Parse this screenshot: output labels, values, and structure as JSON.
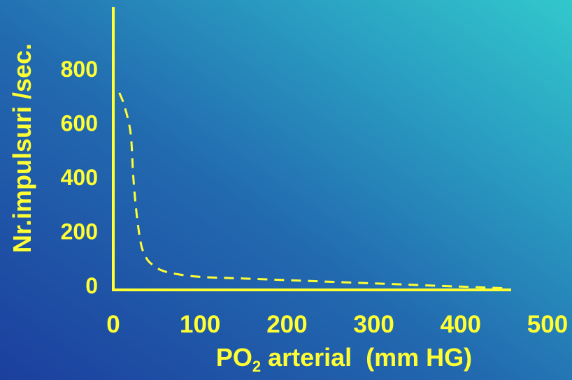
{
  "chart_data": {
    "type": "line",
    "xlabel": {
      "main": "PO",
      "subscript": "2",
      "rest": " arterial  (mm HG)"
    },
    "ylabel": "Nr.impulsuri /sec.",
    "xlim": [
      0,
      500
    ],
    "ylim": [
      0,
      1000
    ],
    "x_ticks": [
      0,
      100,
      200,
      300,
      400,
      500
    ],
    "y_ticks": [
      0,
      200,
      400,
      600,
      800
    ],
    "grid": false,
    "colors": {
      "axis": "#ffff33",
      "line": "#ffff33"
    },
    "series": [
      {
        "line_style": "dashed",
        "x": [
          7,
          13,
          20,
          23,
          27,
          32,
          38,
          45,
          55,
          70,
          100,
          150,
          200,
          250,
          300,
          350,
          400,
          450
        ],
        "y": [
          710,
          660,
          560,
          400,
          260,
          150,
          100,
          75,
          55,
          42,
          30,
          24,
          18,
          12,
          6,
          0,
          -6,
          -12
        ]
      }
    ]
  }
}
